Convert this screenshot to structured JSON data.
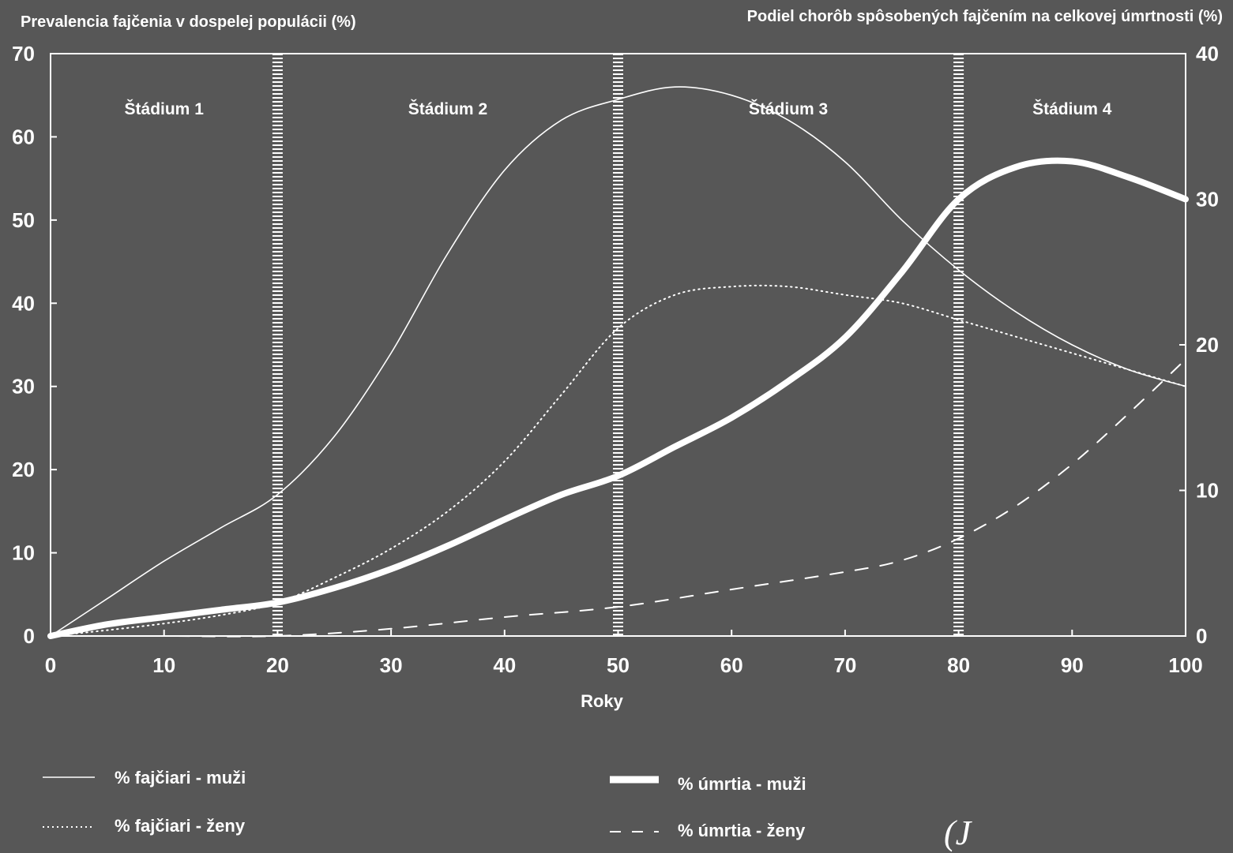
{
  "chart_data": {
    "type": "line",
    "left_axis_title": "Prevalencia fajčenia v dospelej populácii (%)",
    "right_axis_title": "Podiel chorôb spôsobených fajčením na celkovej úmrtnosti (%)",
    "xlabel": "Roky",
    "xlim": [
      0,
      100
    ],
    "xticks": [
      "0",
      "10",
      "20",
      "30",
      "40",
      "50",
      "60",
      "70",
      "80",
      "90",
      "100"
    ],
    "ylim_left": [
      0,
      70
    ],
    "yticks_left": [
      "0",
      "10",
      "20",
      "30",
      "40",
      "50",
      "60",
      "70"
    ],
    "ylim_right": [
      0,
      40
    ],
    "yticks_right": [
      "0",
      "10",
      "20",
      "30",
      "40"
    ],
    "stage_boundaries": [
      20,
      50,
      80
    ],
    "stages": [
      "Štádium 1",
      "Štádium 2",
      "Štádium 3",
      "Štádium 4"
    ],
    "grid": false,
    "series": [
      {
        "name": "% fajčiari - muži",
        "axis": "left",
        "style": "thin-solid",
        "x": [
          0,
          5,
          10,
          15,
          20,
          25,
          30,
          35,
          40,
          45,
          50,
          55,
          60,
          65,
          70,
          75,
          80,
          85,
          90,
          95,
          100
        ],
        "y": [
          0,
          4.5,
          9,
          13,
          17,
          24,
          34,
          46,
          56,
          62,
          64.5,
          66,
          65,
          62,
          57,
          50,
          44,
          39,
          35,
          32,
          30
        ]
      },
      {
        "name": "% fajčiari - ženy",
        "axis": "left",
        "style": "dotted",
        "x": [
          0,
          5,
          10,
          15,
          20,
          25,
          30,
          35,
          40,
          45,
          50,
          55,
          60,
          65,
          70,
          75,
          80,
          85,
          90,
          95,
          100
        ],
        "y": [
          0,
          0.7,
          1.5,
          2.5,
          4,
          7,
          10.5,
          15,
          21,
          29,
          37,
          41,
          42,
          42,
          41,
          40,
          38,
          36,
          34,
          32,
          30
        ]
      },
      {
        "name": "% úmrtia - muži",
        "axis": "right",
        "style": "thick-solid",
        "x": [
          0,
          5,
          10,
          15,
          20,
          25,
          30,
          35,
          40,
          45,
          50,
          55,
          60,
          65,
          70,
          75,
          80,
          85,
          90,
          95,
          100
        ],
        "y": [
          0,
          0.8,
          1.3,
          1.8,
          2.3,
          3.3,
          4.6,
          6.2,
          8,
          9.7,
          11,
          13,
          15,
          17.5,
          20.5,
          25,
          30,
          32.2,
          32.6,
          31.5,
          30
        ]
      },
      {
        "name": "% úmrtia - ženy",
        "axis": "right",
        "style": "dashed",
        "x": [
          0,
          10,
          20,
          30,
          40,
          50,
          60,
          70,
          75,
          80,
          85,
          90,
          95,
          100
        ],
        "y": [
          0,
          0,
          0,
          0.5,
          1.3,
          2,
          3.2,
          4.4,
          5.2,
          6.7,
          8.9,
          11.8,
          15.3,
          19
        ]
      }
    ]
  },
  "legend": [
    {
      "label": "% fajčiari - muži",
      "style": "thin-solid"
    },
    {
      "label": "% fajčiari - ženy",
      "style": "dotted"
    },
    {
      "label": "% úmrtia - muži",
      "style": "thick-solid"
    },
    {
      "label": "% úmrtia - ženy",
      "style": "dashed"
    }
  ],
  "colors": {
    "background": "#575757",
    "foreground": "#ffffff"
  }
}
